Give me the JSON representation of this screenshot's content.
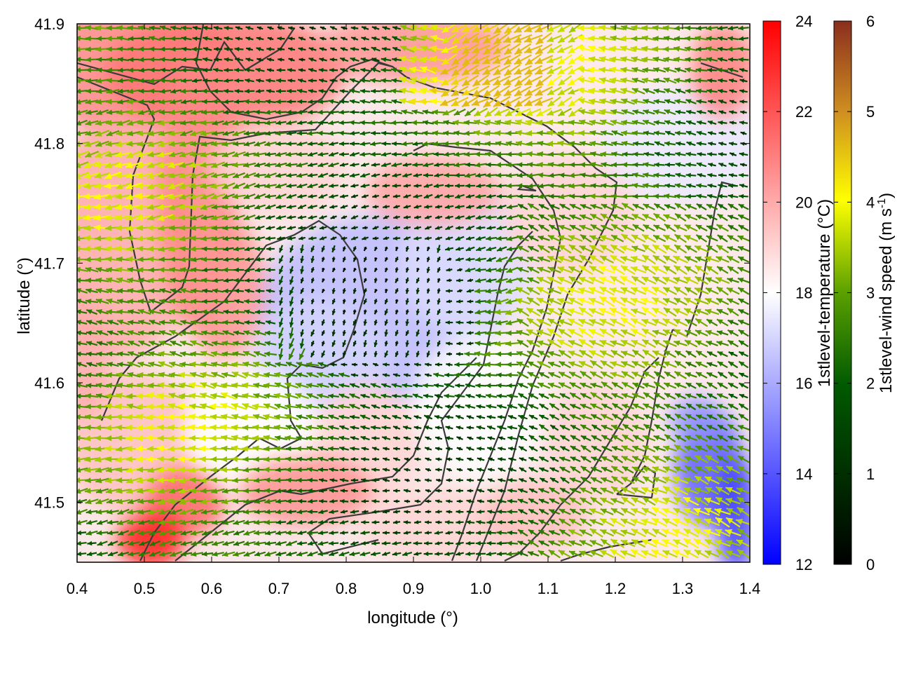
{
  "chart_data": {
    "type": "heatmap",
    "title": "",
    "xlabel": "longitude (°)",
    "ylabel": "latitude (°)",
    "xlim": [
      0.4,
      1.4
    ],
    "ylim": [
      41.45,
      41.9
    ],
    "x_ticks": [
      "0.4",
      "0.5",
      "0.6",
      "0.7",
      "0.8",
      "0.9",
      "1.0",
      "1.1",
      "1.2",
      "1.3",
      "1.4"
    ],
    "y_ticks": [
      "41.5",
      "41.6",
      "41.7",
      "41.8",
      "41.9"
    ],
    "grid": false,
    "series": [
      {
        "kind": "heatmap",
        "description": "1st level temperature field (°C) shaded blue-white-red",
        "values_sample": [
          {
            "lon": 0.55,
            "lat": 41.85,
            "value": 21
          },
          {
            "lon": 0.85,
            "lat": 41.65,
            "value": 16.5
          },
          {
            "lon": 1.0,
            "lat": 41.7,
            "value": 17
          },
          {
            "lon": 0.51,
            "lat": 41.47,
            "value": 23
          },
          {
            "lon": 1.37,
            "lat": 41.5,
            "value": 14
          },
          {
            "lon": 0.6,
            "lat": 41.75,
            "value": 20.5
          },
          {
            "lon": 1.2,
            "lat": 41.8,
            "value": 19
          },
          {
            "lon": 0.75,
            "lat": 41.52,
            "value": 20.5
          }
        ]
      },
      {
        "kind": "vector",
        "description": "1st level wind vectors colored by speed (m s-1); dominant flow toward west/southwest",
        "mean_direction_deg": 200,
        "speed_range": [
          0,
          4.5
        ]
      }
    ],
    "colorbars": [
      {
        "label": "1stlevel-temperature (°C)",
        "range": [
          12,
          24
        ],
        "ticks": [
          "12",
          "14",
          "16",
          "18",
          "20",
          "22",
          "24"
        ],
        "colors": [
          "#0000ff",
          "#ffffff",
          "#ff0000"
        ]
      },
      {
        "label_main": "1stlevel-wind speed (m s",
        "label_sup": "-1",
        "label_end": ")",
        "range": [
          0,
          6
        ],
        "ticks": [
          "0",
          "1",
          "2",
          "3",
          "4",
          "5",
          "6"
        ],
        "colors": [
          "#000000",
          "#005000",
          "#2e8b00",
          "#8cb400",
          "#ffff00",
          "#d09020",
          "#8b2e1e"
        ]
      }
    ]
  }
}
